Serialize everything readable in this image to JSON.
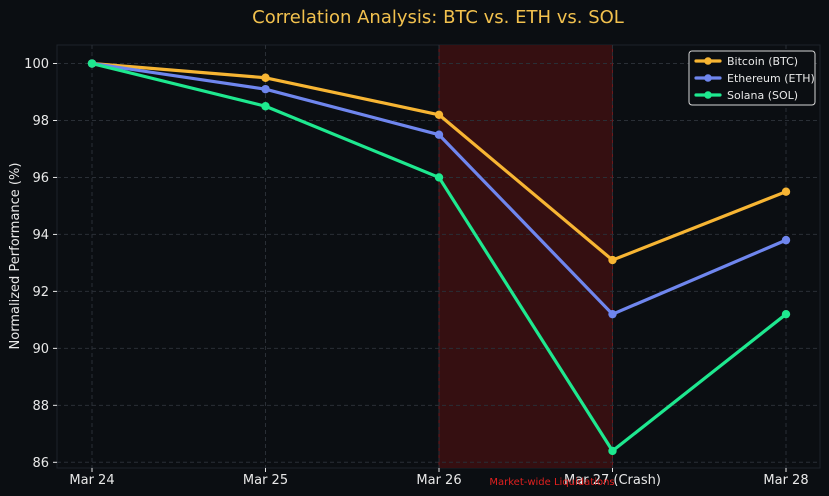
{
  "chart_data": {
    "type": "line",
    "title": "Correlation Analysis: BTC vs. ETH vs. SOL",
    "xlabel": "",
    "ylabel": "Normalized Performance (%)",
    "categories": [
      "Mar 24",
      "Mar 25",
      "Mar 26",
      "Mar 27 (Crash)",
      "Mar 28"
    ],
    "ylim": [
      85.8,
      100.65
    ],
    "yticks": [
      86,
      88,
      90,
      92,
      94,
      96,
      98,
      100
    ],
    "grid": true,
    "legend_position": "top-right",
    "series": [
      {
        "name": "Bitcoin (BTC)",
        "color": "#f7b533",
        "values": [
          100,
          99.5,
          98.2,
          93.1,
          95.5
        ]
      },
      {
        "name": "Ethereum (ETH)",
        "color": "#6f86ee",
        "values": [
          100,
          99.1,
          97.5,
          91.2,
          93.8
        ]
      },
      {
        "name": "Solana (SOL)",
        "color": "#1ee88f",
        "values": [
          100,
          98.5,
          96.0,
          86.4,
          91.2
        ]
      }
    ],
    "shaded_region": {
      "from_index": 2,
      "to_index": 3,
      "color": "#3a0f12"
    },
    "annotation": {
      "text": "Market-wide Liquidations",
      "color": "#e0201f"
    }
  },
  "colors": {
    "background": "#0b0e12",
    "plot_background": "#0b0e12",
    "title": "#f2c14e",
    "axis_text": "#e8e8e8",
    "grid": "#2a2f36"
  }
}
